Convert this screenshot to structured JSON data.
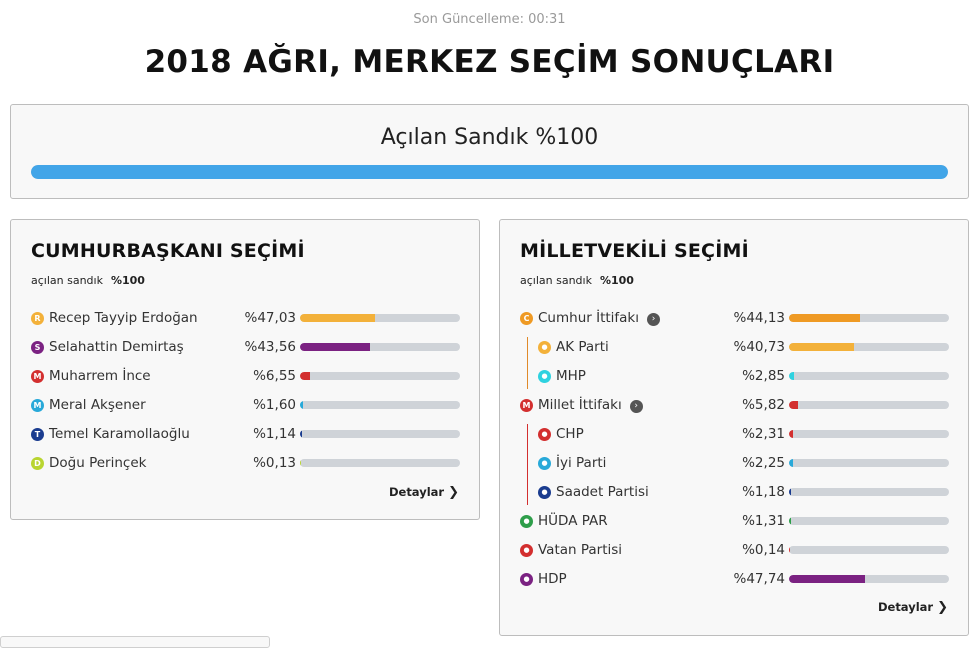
{
  "header": {
    "updated": "Son Güncelleme: 00:31",
    "title": "2018 AĞRI, MERKEZ SEÇİM SONUÇLARI"
  },
  "overall": {
    "label": "Açılan Sandık %100",
    "progress_percent": 100,
    "color": "#42a5e8"
  },
  "presidential": {
    "title": "CUMHURBAŞKANI SEÇİMİ",
    "opened_label": "açılan sandık",
    "opened_value": "%100",
    "details": "Detaylar",
    "candidates": [
      {
        "badge": "R",
        "name": "Recep Tayyip Erdoğan",
        "pct": "%47,03",
        "value": 47.03,
        "color": "#f3b13a"
      },
      {
        "badge": "S",
        "name": "Selahattin Demirtaş",
        "pct": "%43,56",
        "value": 43.56,
        "color": "#7b2282"
      },
      {
        "badge": "M",
        "name": "Muharrem İnce",
        "pct": "%6,55",
        "value": 6.55,
        "color": "#d32f2f"
      },
      {
        "badge": "M",
        "name": "Meral Akşener",
        "pct": "%1,60",
        "value": 1.6,
        "color": "#28a9d9"
      },
      {
        "badge": "T",
        "name": "Temel Karamollaoğlu",
        "pct": "%1,14",
        "value": 1.14,
        "color": "#1a3c8f"
      },
      {
        "badge": "D",
        "name": "Doğu Perinçek",
        "pct": "%0,13",
        "value": 0.13,
        "color": "#b9d531"
      }
    ]
  },
  "parliament": {
    "title": "MİLLETVEKİLİ SEÇİMİ",
    "opened_label": "açılan sandık",
    "opened_value": "%100",
    "details": "Detaylar",
    "rows": [
      {
        "badge": "C",
        "icon": "cumhur-ittifaki-icon",
        "name": "Cumhur İttifakı",
        "pct": "%44,13",
        "value": 44.13,
        "color": "#ef9a24",
        "indent": false,
        "arrow": true
      },
      {
        "badge": "",
        "icon": "ak-parti-icon",
        "name": "AK Parti",
        "pct": "%40,73",
        "value": 40.73,
        "color": "#f3b13a",
        "indent": true,
        "arrow": false
      },
      {
        "badge": "",
        "icon": "mhp-icon",
        "name": "MHP",
        "pct": "%2,85",
        "value": 2.85,
        "color": "#2fd2e0",
        "indent": true,
        "arrow": false
      },
      {
        "badge": "M",
        "icon": "millet-ittifaki-icon",
        "name": "Millet İttifakı",
        "pct": "%5,82",
        "value": 5.82,
        "color": "#d32f2f",
        "indent": false,
        "arrow": true
      },
      {
        "badge": "",
        "icon": "chp-icon",
        "name": "CHP",
        "pct": "%2,31",
        "value": 2.31,
        "color": "#d32f2f",
        "indent": true,
        "arrow": false
      },
      {
        "badge": "",
        "icon": "iyi-parti-icon",
        "name": "İyi Parti",
        "pct": "%2,25",
        "value": 2.25,
        "color": "#28a9d9",
        "indent": true,
        "arrow": false
      },
      {
        "badge": "",
        "icon": "saadet-partisi-icon",
        "name": "Saadet Partisi",
        "pct": "%1,18",
        "value": 1.18,
        "color": "#1a3c8f",
        "indent": true,
        "arrow": false
      },
      {
        "badge": "",
        "icon": "huda-par-icon",
        "name": "HÜDA PAR",
        "pct": "%1,31",
        "value": 1.31,
        "color": "#2e9e4a",
        "indent": false,
        "arrow": false
      },
      {
        "badge": "",
        "icon": "vatan-partisi-icon",
        "name": "Vatan Partisi",
        "pct": "%0,14",
        "value": 0.14,
        "color": "#d32f2f",
        "indent": false,
        "arrow": false
      },
      {
        "badge": "",
        "icon": "hdp-icon",
        "name": "HDP",
        "pct": "%47,74",
        "value": 47.74,
        "color": "#7b2282",
        "indent": false,
        "arrow": false
      }
    ]
  }
}
